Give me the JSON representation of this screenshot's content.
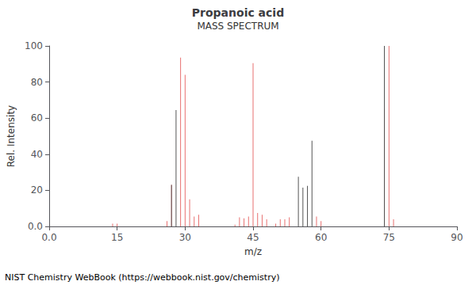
{
  "chart_data": {
    "type": "stem",
    "title": "Propanoic acid",
    "subtitle": "MASS SPECTRUM",
    "xlabel": "m/z",
    "ylabel": "Rel. Intensity",
    "annotations": [
      "NIST Chemistry WebBook (https://webbook.nist.gov/chemistry)"
    ],
    "xlim": [
      0,
      90
    ],
    "ylim": [
      0,
      100
    ],
    "xticks": [
      {
        "value": 0,
        "label": "0.0"
      },
      15,
      30,
      45,
      60,
      75,
      90
    ],
    "yticks": [
      {
        "value": 0,
        "label": "0.0"
      },
      20,
      40,
      60,
      80,
      100
    ],
    "grid": false,
    "series": [
      {
        "color": "#e87070",
        "x": [
          14,
          15,
          26,
          27,
          29,
          30,
          31,
          32,
          33,
          41,
          42,
          43,
          44,
          45,
          46,
          47,
          48,
          50,
          51,
          52,
          53,
          59,
          60,
          74,
          75,
          76
        ],
        "values": [
          1.5,
          1.5,
          3.0,
          23.0,
          93.5,
          84.0,
          15.0,
          5.5,
          6.5,
          1.0,
          5.0,
          4.5,
          5.5,
          90.5,
          7.5,
          6.5,
          4.0,
          1.5,
          4.0,
          4.0,
          5.0,
          5.5,
          3.0,
          65.0,
          100.0,
          4.0
        ]
      },
      {
        "color": "#555555",
        "x": [
          27,
          28,
          55,
          56,
          57,
          58
        ],
        "values": [
          23.0,
          64.5,
          27.5,
          21.5,
          22.5,
          47.5
        ]
      }
    ],
    "vlines": [
      {
        "x": 74,
        "color": "#555555"
      }
    ]
  }
}
